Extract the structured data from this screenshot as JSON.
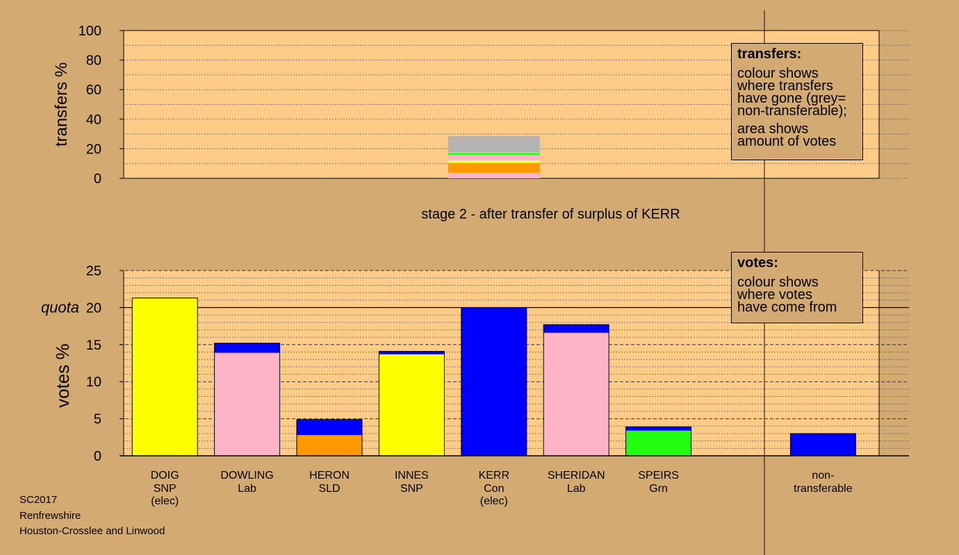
{
  "footer": {
    "election": "SC2017",
    "council": "Renfrewshire",
    "ward": "Houston-Crosslee and Linwood"
  },
  "colors": {
    "background": "#d4aa73",
    "plot_background": "#ffcc88",
    "con": "#0000ff",
    "lab": "#ffb3c6",
    "snp": "#ffff00",
    "sld": "#ff9900",
    "grn": "#22ff11",
    "nontransferable": "#b3b3b3",
    "lightgreen": "#99ff88",
    "lightyellow": "#ffff99"
  },
  "legend_transfers": {
    "title": "transfers:",
    "lines1": [
      "colour shows",
      "where transfers",
      "have gone (grey=",
      "non-transferable);"
    ],
    "lines2": [
      "area shows",
      "amount of votes"
    ]
  },
  "legend_votes": {
    "title": "votes:",
    "lines": [
      "colour shows",
      "where votes",
      "have come from"
    ]
  },
  "chart_data": [
    {
      "type": "bar",
      "title": "stage 2 - after transfer of surplus of KERR",
      "ylabel": "transfers %",
      "ylim": [
        0,
        100
      ],
      "yticks": [
        0,
        20,
        40,
        60,
        80,
        100
      ],
      "bar_category": "KERR",
      "stack": [
        {
          "color": "lab",
          "value": 3.8
        },
        {
          "color": "sld",
          "value": 6.5
        },
        {
          "color": "snp",
          "value": 0.9
        },
        {
          "color": "lightyellow",
          "value": 0.9
        },
        {
          "color": "lab",
          "value": 3.7
        },
        {
          "color": "grn",
          "value": 1.3
        },
        {
          "color": "lightgreen",
          "value": 0.5
        },
        {
          "color": "nontransferable",
          "value": 10.9
        }
      ]
    },
    {
      "type": "bar",
      "ylabel": "votes %",
      "ylim": [
        0,
        25
      ],
      "yticks": [
        0,
        5,
        10,
        15,
        20,
        25
      ],
      "quota": {
        "label": "quota",
        "value": 20
      },
      "categories": [
        {
          "name": "DOIG",
          "party": "SNP",
          "note": "(elec)"
        },
        {
          "name": "DOWLING",
          "party": "Lab",
          "note": ""
        },
        {
          "name": "HERON",
          "party": "SLD",
          "note": ""
        },
        {
          "name": "INNES",
          "party": "SNP",
          "note": ""
        },
        {
          "name": "KERR",
          "party": "Con",
          "note": "(elec)"
        },
        {
          "name": "SHERIDAN",
          "party": "Lab",
          "note": ""
        },
        {
          "name": "SPEIRS",
          "party": "Grn",
          "note": ""
        },
        {
          "name": "",
          "party": "",
          "note": ""
        },
        {
          "name": "non-",
          "party": "transferable",
          "note": ""
        }
      ],
      "bars": [
        [
          {
            "color": "snp",
            "value": 21.3
          }
        ],
        [
          {
            "color": "lab",
            "value": 13.9
          },
          {
            "color": "con",
            "value": 1.3
          }
        ],
        [
          {
            "color": "sld",
            "value": 2.8
          },
          {
            "color": "con",
            "value": 2.1
          }
        ],
        [
          {
            "color": "snp",
            "value": 13.7
          },
          {
            "color": "con",
            "value": 0.4
          }
        ],
        [
          {
            "color": "con",
            "value": 20.0
          }
        ],
        [
          {
            "color": "lab",
            "value": 16.6
          },
          {
            "color": "con",
            "value": 1.1
          }
        ],
        [
          {
            "color": "grn",
            "value": 3.4
          },
          {
            "color": "con",
            "value": 0.5
          }
        ],
        [],
        [
          {
            "color": "con",
            "value": 3.0
          }
        ]
      ]
    }
  ]
}
